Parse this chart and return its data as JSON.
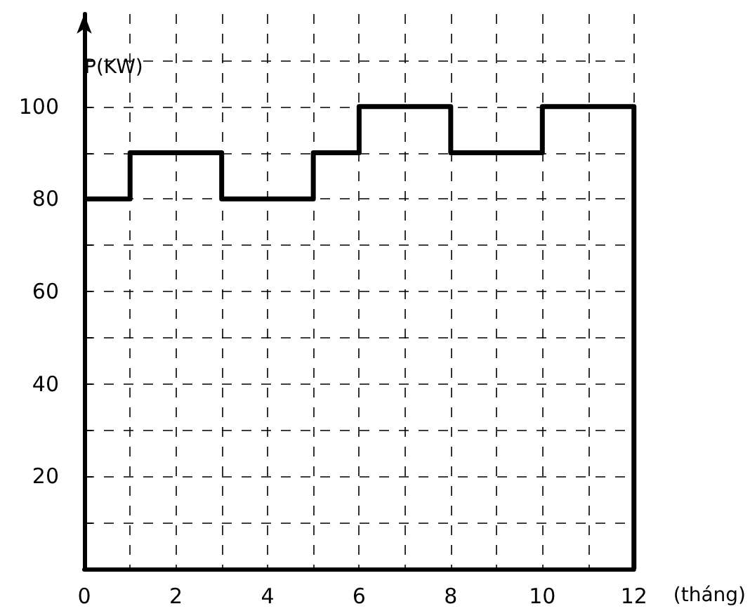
{
  "chart_data": {
    "type": "step",
    "ylabel": "P(KW)",
    "xlabel": "(tháng)",
    "x": [
      0,
      1,
      3,
      5,
      6,
      8,
      10,
      12,
      12
    ],
    "series": [
      {
        "color": "#000000",
        "values": [
          80,
          90,
          80,
          90,
          100,
          90,
          100,
          100,
          0
        ]
      }
    ],
    "xlim": [
      0,
      12
    ],
    "xticks": [
      0,
      {
        "value": 1,
        "label": null
      },
      2,
      {
        "value": 3,
        "label": null
      },
      4,
      {
        "value": 5,
        "label": null
      },
      6,
      {
        "value": 7,
        "label": null
      },
      8,
      {
        "value": 9,
        "label": null
      },
      10,
      {
        "value": 11,
        "label": null
      },
      12
    ],
    "ylim": [
      0,
      120
    ],
    "yticks": [
      {
        "value": 0,
        "label": null
      },
      {
        "value": 10,
        "label": null
      },
      20,
      {
        "value": 30,
        "label": null
      },
      40,
      {
        "value": 50,
        "label": null
      },
      60,
      {
        "value": 70,
        "label": null
      },
      80,
      {
        "value": 90,
        "label": null
      },
      100,
      {
        "value": 110,
        "label": null
      }
    ],
    "grid": true,
    "marker": "none",
    "line_style": "solid"
  }
}
